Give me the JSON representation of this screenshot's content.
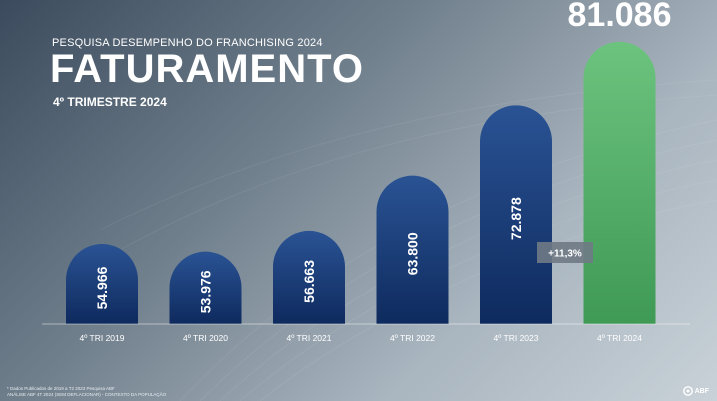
{
  "header": {
    "subtitle": "PESQUISA DESEMPENHO DO FRANCHISING 2024",
    "title": "FATURAMENTO",
    "period": "4º TRIMESTRE 2024"
  },
  "chart_data": {
    "type": "bar",
    "categories": [
      "4º TRI 2019",
      "4º TRI 2020",
      "4º TRI 2021",
      "4º TRI 2022",
      "4º TRI 2023",
      "4º TRI 2024"
    ],
    "values": [
      54.966,
      53.976,
      56.663,
      63.8,
      72.878,
      81.086
    ],
    "labels": [
      "54.966",
      "53.976",
      "56.663",
      "63.800",
      "72.878",
      "81.086"
    ],
    "highlight_index": 5,
    "annotation": "+11,3%",
    "colors": {
      "bar": "#0e2a5e",
      "bar_top": "#2a5394",
      "highlight": "#3f9a56",
      "highlight_top": "#6cc37e",
      "badge": "#6f7a85"
    }
  },
  "footnotes": [
    "* Dados Publicados de 2019 a T2 2023 Pesquisa ABF",
    "ANÁLISE ABF 4T 2024 (SEM DEFLACIONAR) - CONTEXTO DA POPULAÇÃO"
  ],
  "logo": {
    "text": "ABF"
  }
}
